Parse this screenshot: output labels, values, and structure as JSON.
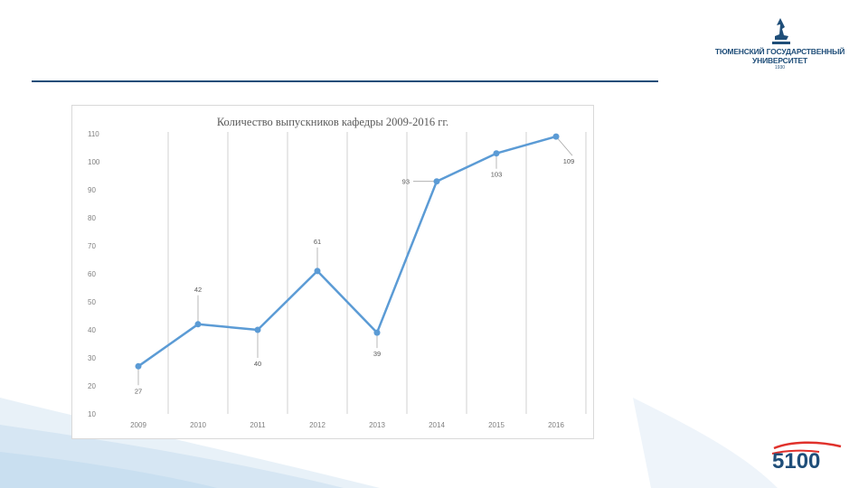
{
  "logo": {
    "line1": "ТЮМЕНСКИЙ ГОСУДАРСТВЕННЫЙ",
    "line2": "УНИВЕРСИТЕТ",
    "small": "1930"
  },
  "badge": {
    "text": "5100"
  },
  "colors": {
    "series": "#5b9bd5",
    "header_rule": "#1f4e79",
    "badge_red": "#e0312b",
    "badge_blue": "#1f4e79"
  },
  "chart_data": {
    "type": "line",
    "title": "Количество выпускников кафедры 2009-2016 гг.",
    "categories": [
      "2009",
      "2010",
      "2011",
      "2012",
      "2013",
      "2014",
      "2015",
      "2016"
    ],
    "series": [
      {
        "values": [
          27,
          42,
          40,
          61,
          39,
          93,
          103,
          109
        ]
      }
    ],
    "data_labels": [
      "27",
      "42",
      "40",
      "61",
      "39",
      "93",
      "103",
      "109"
    ],
    "ylim": [
      10,
      110
    ],
    "yticks": [
      "10",
      "20",
      "30",
      "40",
      "50",
      "60",
      "70",
      "80",
      "90",
      "100",
      "110"
    ],
    "xlabel": "",
    "ylabel": "",
    "grid": "vertical",
    "legend": "none"
  }
}
